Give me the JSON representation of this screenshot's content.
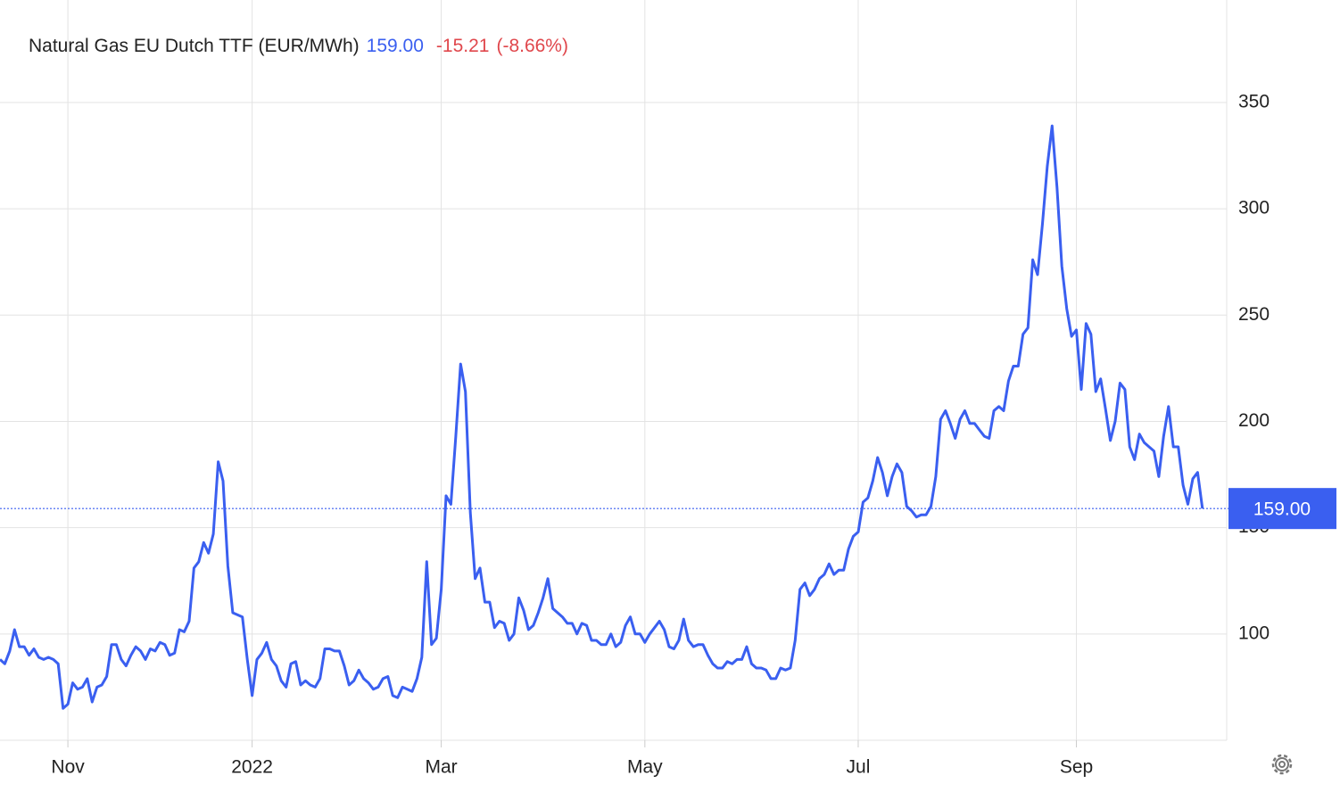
{
  "chart_data": {
    "type": "line",
    "title": "Natural Gas EU Dutch TTF (EUR/MWh)",
    "price_label": "159.00",
    "change": "-15.21",
    "change_pct": "(-8.66%)",
    "xlim": [
      0,
      253
    ],
    "xticks": [
      {
        "value": 14,
        "label": "Nov"
      },
      {
        "value": 52,
        "label": "2022"
      },
      {
        "value": 91,
        "label": "Mar"
      },
      {
        "value": 133,
        "label": "May"
      },
      {
        "value": 177,
        "label": "Jul"
      },
      {
        "value": 222,
        "label": "Sep"
      }
    ],
    "ylim": [
      50,
      394
    ],
    "yticks": [
      100,
      150,
      200,
      250,
      300,
      350
    ],
    "grid": true,
    "series": [
      {
        "name": "Natural Gas EU Dutch TTF",
        "color": "#3a5ff0",
        "values": [
          88,
          86,
          92,
          102,
          94,
          94,
          90,
          93,
          89,
          88,
          89,
          88,
          86,
          65,
          67,
          77,
          74,
          75,
          79,
          68,
          75,
          76,
          80,
          95,
          95,
          88,
          85,
          90,
          94,
          92,
          88,
          93,
          92,
          96,
          95,
          90,
          91,
          102,
          101,
          106,
          131,
          134,
          143,
          138,
          147,
          181,
          172,
          132,
          110,
          109,
          108,
          88,
          71,
          88,
          91,
          96,
          88,
          85,
          78,
          75,
          86,
          87,
          76,
          78,
          76,
          75,
          79,
          93,
          93,
          92,
          92,
          85,
          76,
          78,
          83,
          79,
          77,
          74,
          75,
          79,
          80,
          71,
          70,
          75,
          74,
          73,
          79,
          89,
          134,
          95,
          98,
          121,
          165,
          161,
          193,
          227,
          214,
          157,
          126,
          131,
          115,
          115,
          103,
          106,
          105,
          97,
          100,
          117,
          111,
          102,
          104,
          110,
          117,
          126,
          112,
          110,
          108,
          105,
          105,
          100,
          105,
          104,
          97,
          97,
          95,
          95,
          100,
          94,
          96,
          104,
          108,
          100,
          100,
          96,
          100,
          103,
          106,
          102,
          94,
          93,
          97,
          107,
          97,
          94,
          95,
          95,
          90,
          86,
          84,
          84,
          87,
          86,
          88,
          88,
          94,
          86,
          84,
          84,
          83,
          79,
          79,
          84,
          83,
          84,
          97,
          121,
          124,
          118,
          121,
          126,
          128,
          133,
          128,
          130,
          130,
          140,
          146,
          148,
          162,
          164,
          172,
          183,
          176,
          165,
          174,
          180,
          176,
          160,
          158,
          155,
          156,
          156,
          160,
          174,
          201,
          205,
          199,
          192,
          201,
          205,
          199,
          199,
          196,
          193,
          192,
          205,
          207,
          205,
          219,
          226,
          226,
          241,
          244,
          276,
          269,
          293,
          320,
          339,
          310,
          273,
          253,
          240,
          243,
          215,
          246,
          241,
          214,
          220,
          206,
          191,
          200,
          218,
          215,
          188,
          182,
          194,
          190,
          188,
          186,
          174,
          193,
          207,
          188,
          188,
          170,
          161,
          173,
          176,
          159
        ]
      }
    ]
  }
}
